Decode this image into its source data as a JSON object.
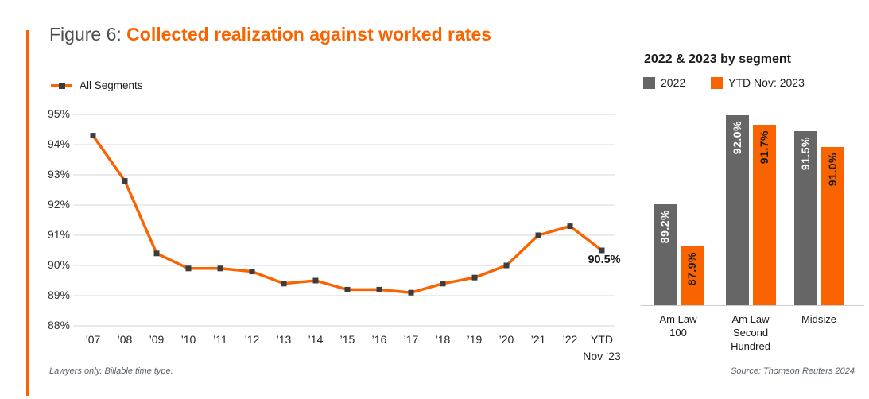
{
  "header": {
    "figure_label": "Figure 6:",
    "title": "Collected realization against worked rates"
  },
  "notes": {
    "left": "Lawyers only.  Billable time type.",
    "source": "Source: Thomson Reuters 2024"
  },
  "colors": {
    "accent_orange": "#FA6400",
    "series_gray": "#666666",
    "marker_dark": "#3c3c3c",
    "grid": "#d7d7d7",
    "bar_label_on_gray": "#ffffff",
    "bar_label_on_orange": "#1c1c1c"
  },
  "chart_data": [
    {
      "type": "line",
      "legend": [
        "All Segments"
      ],
      "categories": [
        "’07",
        " 08",
        " 09",
        " 10",
        " 11",
        " 12",
        " 13",
        " 14",
        " 15",
        " 16",
        " 17",
        " 18",
        " 19",
        " 20",
        " 21",
        " 22",
        "YTD\nNov ’23"
      ],
      "categories_display": [
        "’07",
        "’08",
        "’09",
        "’10",
        "’11",
        "’12",
        "’13",
        "’14",
        "’15",
        "’16",
        "’17",
        "’18",
        "’19",
        "’20",
        "’21",
        "’22",
        "YTD\nNov ’23"
      ],
      "series": [
        {
          "name": "All Segments",
          "values": [
            94.3,
            92.8,
            90.4,
            89.9,
            89.9,
            89.8,
            89.4,
            89.5,
            89.2,
            89.2,
            89.1,
            89.4,
            89.6,
            90.0,
            91.0,
            91.3,
            90.5
          ]
        }
      ],
      "ylim": [
        88,
        95
      ],
      "ytick_labels": [
        "95%",
        "94%",
        "93%",
        "92%",
        "91%",
        "90%",
        "89%",
        "88%"
      ],
      "grid": "horizontal",
      "end_label": "90.5%",
      "legend_position": "top-left"
    },
    {
      "type": "bar",
      "title": "2022 & 2023 by segment",
      "categories": [
        "Am Law\n100",
        "Am Law\nSecond\nHundred",
        "Midsize"
      ],
      "series": [
        {
          "name": "2022",
          "color": "#666666",
          "label_color": "#ffffff",
          "values": [
            89.2,
            92.0,
            91.5
          ],
          "labels": [
            "89.2%",
            "92.0%",
            "91.5%"
          ]
        },
        {
          "name": "YTD Nov: 2023",
          "color": "#FA6400",
          "label_color": "#1c1c1c",
          "values": [
            87.9,
            91.7,
            91.0
          ],
          "labels": [
            "87.9%",
            "91.7%",
            "91.0%"
          ]
        }
      ],
      "ylim": [
        86.05,
        92.6
      ],
      "legend_position": "top"
    }
  ]
}
